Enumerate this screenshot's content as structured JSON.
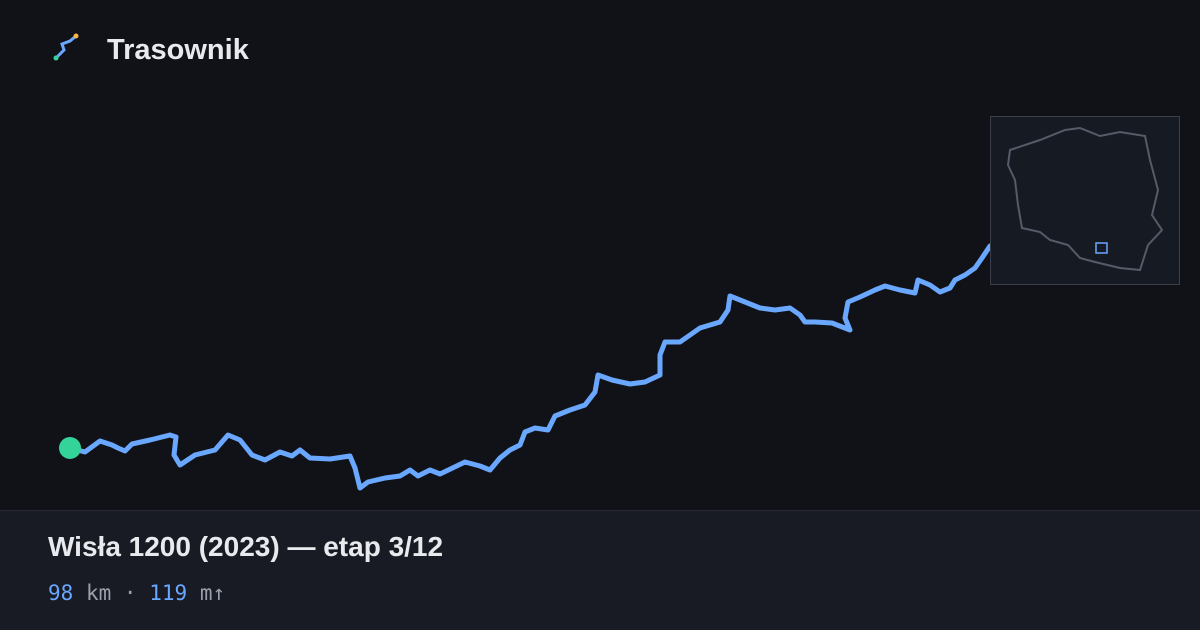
{
  "brand": "Trasownik",
  "title": "Wisła 1200 (2023) — etap 3/12",
  "stats": {
    "distance": 98,
    "distance_unit": "km",
    "separator": "·",
    "elevation": 119,
    "elevation_unit": "m↑"
  }
}
